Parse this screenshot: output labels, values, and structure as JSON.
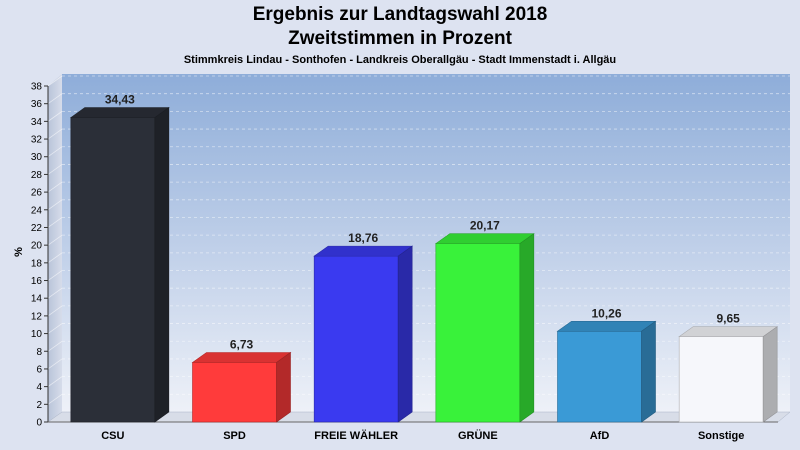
{
  "chart_data": {
    "type": "bar",
    "title": "Ergebnis zur Landtagswahl 2018",
    "title2": "Zweitstimmen in Prozent",
    "subtitle": "Stimmkreis Lindau - Sonthofen - Landkreis Oberallgäu - Stadt Immenstadt i. Allgäu",
    "ylabel": "%",
    "ylim": [
      0,
      38
    ],
    "ytick_step": 2,
    "categories": [
      "CSU",
      "SPD",
      "FREIE WÄHLER",
      "GRÜNE",
      "AfD",
      "Sonstige"
    ],
    "values": [
      34.43,
      6.73,
      18.76,
      20.17,
      10.26,
      9.65
    ],
    "value_labels": [
      "34,43",
      "6,73",
      "18,76",
      "20,17",
      "10,26",
      "9,65"
    ],
    "colors": [
      "#2b2f38",
      "#ff3b3b",
      "#3a3af0",
      "#39f23a",
      "#3a9ad6",
      "#f6f7fb"
    ],
    "grid": true
  }
}
